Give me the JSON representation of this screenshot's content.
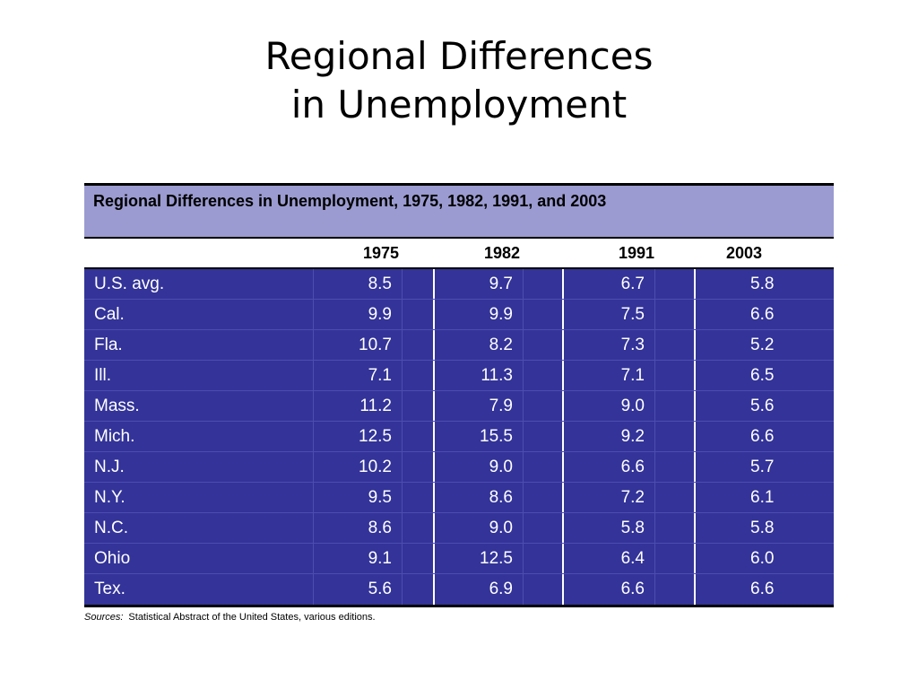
{
  "slide": {
    "title_line1": "Regional Differences",
    "title_line2": "in Unemployment"
  },
  "table": {
    "caption": "Regional Differences in Unemployment, 1975, 1982, 1991, and 2003",
    "years": [
      "1975",
      "1982",
      "1991",
      "2003"
    ],
    "rows": [
      {
        "state": "U.S. avg.",
        "values": [
          "8.5",
          "9.7",
          "6.7",
          "5.8"
        ]
      },
      {
        "state": "Cal.",
        "values": [
          "9.9",
          "9.9",
          "7.5",
          "6.6"
        ]
      },
      {
        "state": "Fla.",
        "values": [
          "10.7",
          "8.2",
          "7.3",
          "5.2"
        ]
      },
      {
        "state": "Ill.",
        "values": [
          "7.1",
          "11.3",
          "7.1",
          "6.5"
        ]
      },
      {
        "state": "Mass.",
        "values": [
          "11.2",
          "7.9",
          "9.0",
          "5.6"
        ]
      },
      {
        "state": "Mich.",
        "values": [
          "12.5",
          "15.5",
          "9.2",
          "6.6"
        ]
      },
      {
        "state": "N.J.",
        "values": [
          "10.2",
          "9.0",
          "6.6",
          "5.7"
        ]
      },
      {
        "state": "N.Y.",
        "values": [
          "9.5",
          "8.6",
          "7.2",
          "6.1"
        ]
      },
      {
        "state": "N.C.",
        "values": [
          "8.6",
          "9.0",
          "5.8",
          "5.8"
        ]
      },
      {
        "state": "Ohio",
        "values": [
          "9.1",
          "12.5",
          "6.4",
          "6.0"
        ]
      },
      {
        "state": "Tex.",
        "values": [
          "5.6",
          "6.9",
          "6.6",
          "6.6"
        ]
      }
    ]
  },
  "sources": {
    "label": "Sources:",
    "text": "Statistical Abstract of the United States, various editions."
  },
  "colors": {
    "caption_bg": "#9b9bd1",
    "body_bg": "#333399",
    "body_text": "#ffffff"
  }
}
